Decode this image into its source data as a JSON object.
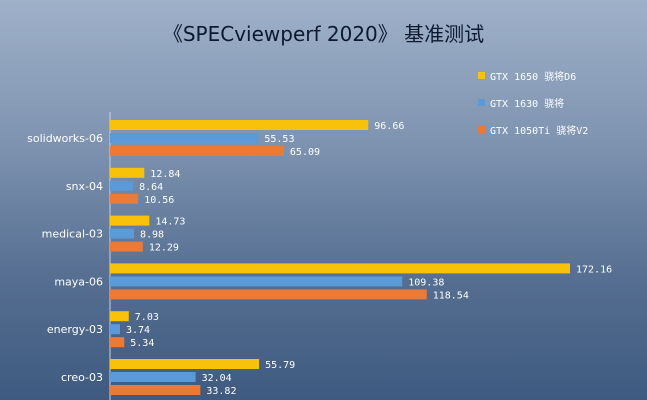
{
  "chart_data": {
    "type": "bar",
    "orientation": "horizontal",
    "title": "《SPECviewperf 2020》 基准测试",
    "categories": [
      "solidworks-06",
      "snx-04",
      "medical-03",
      "maya-06",
      "energy-03",
      "creo-03"
    ],
    "series": [
      {
        "name": "GTX 1650 骁将D6",
        "color": "#f8c20b",
        "values": [
          96.66,
          12.84,
          14.73,
          172.16,
          7.03,
          55.79
        ],
        "labels": [
          "96.66",
          "12.84",
          "14.73",
          "172.16",
          "7.03",
          "55.79"
        ]
      },
      {
        "name": "GTX 1630 骁将",
        "color": "#5b9ad8",
        "values": [
          55.53,
          8.64,
          8.98,
          109.38,
          3.74,
          32.04
        ],
        "labels": [
          "55.53",
          "8.64",
          "8.98",
          "109.38",
          "3.74",
          "32.04"
        ]
      },
      {
        "name": "GTX 1050Ti 骁将V2",
        "color": "#ec7a37",
        "values": [
          65.09,
          10.56,
          12.29,
          118.54,
          5.34,
          33.82
        ],
        "labels": [
          "65.09",
          "10.56",
          "12.29",
          "118.54",
          "5.34",
          "33.82"
        ]
      }
    ],
    "xlim": [
      0,
      175
    ],
    "legend": "top-right",
    "grid": false
  }
}
